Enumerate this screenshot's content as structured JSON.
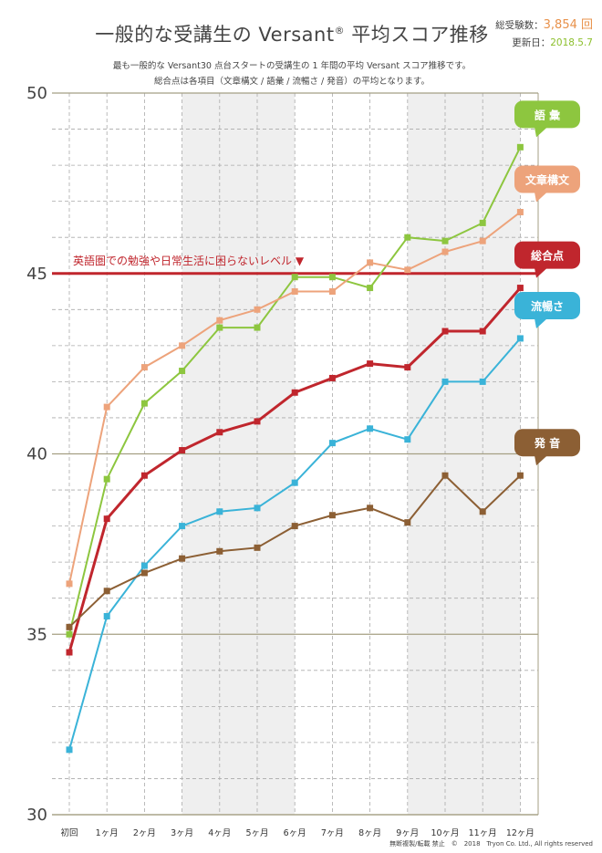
{
  "header": {
    "title_pre": "一般的な受講生の Versant",
    "title_reg": "®",
    "title_post": " 平均スコア推移",
    "examinees_label": "総受験数：",
    "examinees_value": "3,854 回",
    "updated_label": "更新日：",
    "updated_value": "2018.5.7",
    "subtitle_1": "最も一般的な Versant30 点台スタートの受講生の 1 年間の平均 Versant スコア推移です。",
    "subtitle_2": "総合点は各項目（文章構文 / 語彙 / 流暢さ / 発音）の平均となります。"
  },
  "footer": {
    "copyright": "無断複製/転載 禁止　©　2018　Tryon Co. Ltd., All rights reserved"
  },
  "chart_data": {
    "type": "line",
    "categories": [
      "初回",
      "1ヶ月",
      "2ヶ月",
      "3ヶ月",
      "4ヶ月",
      "5ヶ月",
      "6ヶ月",
      "7ヶ月",
      "8ヶ月",
      "9ヶ月",
      "10ヶ月",
      "11ヶ月",
      "12ヶ月"
    ],
    "ylim": [
      30,
      50
    ],
    "yticks": [
      30,
      35,
      40,
      45,
      50
    ],
    "reference_line": {
      "value": 45,
      "label": "英語圏での勉強や日常生活に困らないレベル ▼",
      "color": "#c0262d"
    },
    "shaded_ranges": [
      [
        3,
        6
      ],
      [
        9,
        12
      ]
    ],
    "series": [
      {
        "name": "語 彙",
        "color": "#8dc63f",
        "values": [
          35.0,
          39.3,
          41.4,
          42.3,
          43.5,
          43.5,
          44.9,
          44.9,
          44.6,
          46.0,
          45.9,
          46.4,
          48.5
        ]
      },
      {
        "name": "文章構文",
        "color": "#eda37b",
        "values": [
          36.4,
          41.3,
          42.4,
          43.0,
          43.7,
          44.0,
          44.5,
          44.5,
          45.3,
          45.1,
          45.6,
          45.9,
          46.7
        ]
      },
      {
        "name": "総合点",
        "color": "#c0262d",
        "values": [
          34.5,
          38.2,
          39.4,
          40.1,
          40.6,
          40.9,
          41.7,
          42.1,
          42.5,
          42.4,
          43.4,
          43.4,
          44.6
        ]
      },
      {
        "name": "流暢さ",
        "color": "#3ab3d8",
        "values": [
          31.8,
          35.5,
          36.9,
          38.0,
          38.4,
          38.5,
          39.2,
          40.3,
          40.7,
          40.4,
          42.0,
          42.0,
          43.2
        ]
      },
      {
        "name": "発 音",
        "color": "#8c5f34",
        "values": [
          35.2,
          36.2,
          36.7,
          37.1,
          37.3,
          37.4,
          38.0,
          38.3,
          38.5,
          38.1,
          39.4,
          38.4,
          39.4
        ]
      }
    ]
  }
}
